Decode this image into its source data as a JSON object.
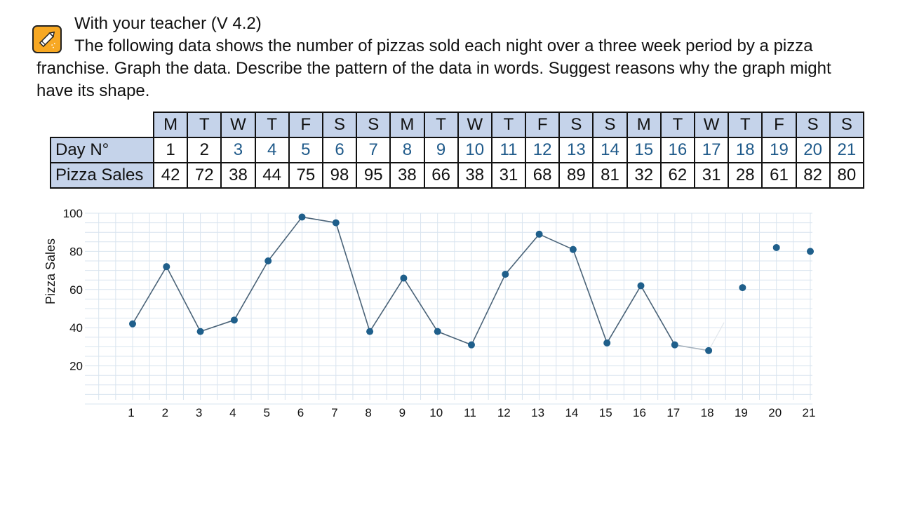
{
  "header": {
    "icon": "pencil-icon",
    "title": "With your teacher (V 4.2)",
    "instructions": "The following data shows the number of pizzas sold each night over a three week period by a pizza franchise. Graph the data. Describe the pattern of the data in words. Suggest reasons why the graph might have its shape."
  },
  "table": {
    "day_letters": [
      "M",
      "T",
      "W",
      "T",
      "F",
      "S",
      "S",
      "M",
      "T",
      "W",
      "T",
      "F",
      "S",
      "S",
      "M",
      "T",
      "W",
      "T",
      "F",
      "S",
      "S"
    ],
    "day_label": "Day N°",
    "day_numbers": [
      "1",
      "2",
      "3",
      "4",
      "5",
      "6",
      "7",
      "8",
      "9",
      "10",
      "11",
      "12",
      "13",
      "14",
      "15",
      "16",
      "17",
      "18",
      "19",
      "20",
      "21"
    ],
    "sales_label": "Pizza Sales",
    "sales": [
      "42",
      "72",
      "38",
      "44",
      "75",
      "98",
      "95",
      "38",
      "66",
      "38",
      "31",
      "68",
      "89",
      "81",
      "32",
      "62",
      "31",
      "28",
      "61",
      "82",
      "80"
    ]
  },
  "colors": {
    "header_fill": "#c5d3ea",
    "line": "#4a6378",
    "point": "#1f5f8b",
    "grid": "#d9e4ef",
    "blue_text": "#1f5a8a",
    "icon_fill": "#f7a823"
  },
  "chart_data": {
    "type": "line",
    "ylabel": "Pizza Sales",
    "xlabel": "",
    "x": [
      1,
      2,
      3,
      4,
      5,
      6,
      7,
      8,
      9,
      10,
      11,
      12,
      13,
      14,
      15,
      16,
      17,
      18,
      19,
      20,
      21
    ],
    "values": [
      42,
      72,
      38,
      44,
      75,
      98,
      95,
      38,
      66,
      38,
      31,
      68,
      89,
      81,
      32,
      62,
      31,
      28,
      61,
      82,
      80
    ],
    "connected_through_x": 18,
    "ylim": [
      0,
      100
    ],
    "y_ticks": [
      20,
      40,
      60,
      80,
      100
    ],
    "grid": true
  }
}
